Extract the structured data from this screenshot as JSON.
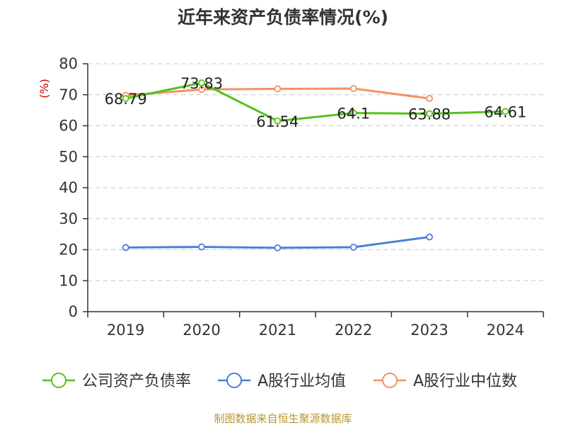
{
  "chart_data": {
    "type": "line",
    "title": "近年来资产负债率情况(%)",
    "ylabel": "(%)",
    "xlabel": "",
    "ylim": [
      0,
      80
    ],
    "yticks": [
      0,
      10,
      20,
      30,
      40,
      50,
      60,
      70,
      80
    ],
    "grid": true,
    "legend_position": "bottom",
    "categories": [
      "2019",
      "2020",
      "2021",
      "2022",
      "2023",
      "2024"
    ],
    "series": [
      {
        "name": "公司资产负债率",
        "color": "#52c41a",
        "values": [
          68.79,
          73.83,
          61.54,
          64.1,
          63.88,
          64.61
        ],
        "labels": [
          "68.79",
          "73.83",
          "61.54",
          "64.1",
          "63.88",
          "64.61"
        ]
      },
      {
        "name": "A股行业均值",
        "color": "#4a7fd8",
        "values": [
          20.7,
          20.9,
          20.6,
          20.8,
          24.1,
          null
        ]
      },
      {
        "name": "A股行业中位数",
        "color": "#f39260",
        "values": [
          69.8,
          71.7,
          71.9,
          72.0,
          68.8,
          null
        ]
      }
    ]
  },
  "source": "制图数据来自恒生聚源数据库"
}
